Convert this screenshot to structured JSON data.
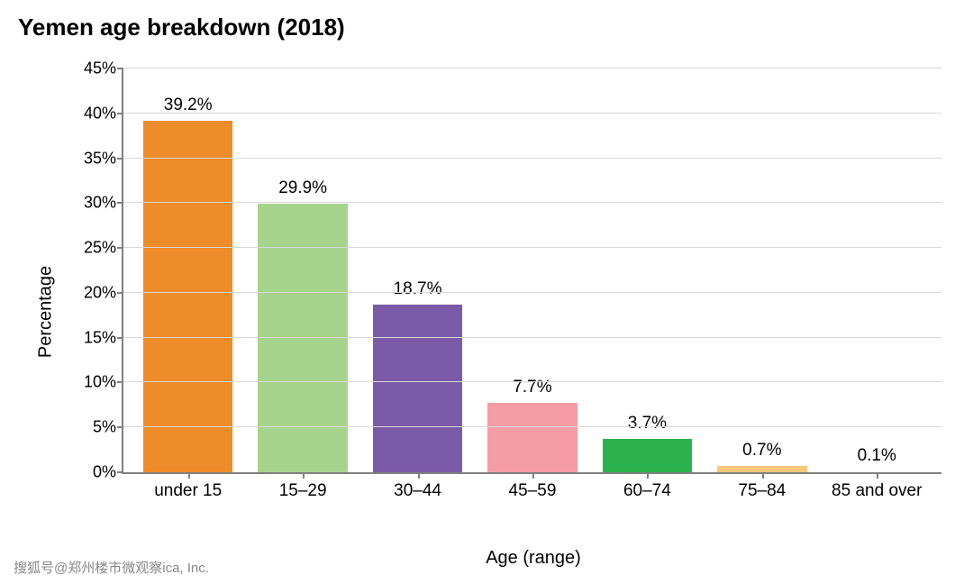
{
  "chart": {
    "type": "bar",
    "title": "Yemen age breakdown (2018)",
    "title_fontsize": 26,
    "title_fontweight": "bold",
    "xlabel": "Age (range)",
    "ylabel": "Percentage",
    "label_fontsize": 20,
    "tick_fontsize": 18,
    "value_label_fontsize": 19,
    "background_color": "#ffffff",
    "grid_color": "#d9d9d9",
    "axis_color": "#808080",
    "ylim": [
      0,
      45
    ],
    "ytick_step": 5,
    "yticks": [
      0,
      5,
      10,
      15,
      20,
      25,
      30,
      35,
      40,
      45
    ],
    "ytick_labels": [
      "0%",
      "5%",
      "10%",
      "15%",
      "20%",
      "25%",
      "30%",
      "35%",
      "40%",
      "45%"
    ],
    "categories": [
      "under 15",
      "15–29",
      "30–44",
      "45–59",
      "60–74",
      "75–84",
      "85 and over"
    ],
    "values": [
      39.2,
      29.9,
      18.7,
      7.7,
      3.7,
      0.7,
      0.1
    ],
    "value_labels": [
      "39.2%",
      "29.9%",
      "18.7%",
      "7.7%",
      "3.7%",
      "0.7%",
      "0.1%"
    ],
    "bar_colors": [
      "#ee8c29",
      "#a7d48d",
      "#7a5aa7",
      "#f59ca5",
      "#2bb24c",
      "#f7c77b",
      "#ffffff"
    ],
    "bar_width": 0.78
  },
  "source": {
    "text_suffix": "ica, Inc."
  },
  "watermark": {
    "text": "搜狐号@郑州楼市微观察"
  }
}
